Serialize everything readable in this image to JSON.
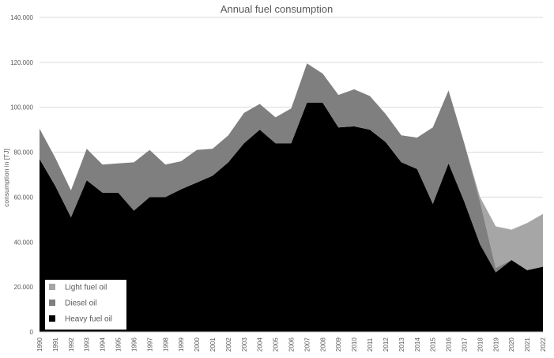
{
  "chart_data": {
    "type": "area",
    "stacked": true,
    "title": "Annual fuel consumption",
    "xlabel": "",
    "ylabel": "consumption in [TJ]",
    "ylim": [
      0,
      140000
    ],
    "yticks": [
      0,
      20000,
      40000,
      60000,
      80000,
      100000,
      120000,
      140000
    ],
    "ytick_labels": [
      "0",
      "20.000",
      "40.000",
      "60.000",
      "80.000",
      "100.000",
      "120.000",
      "140.000"
    ],
    "grid": true,
    "legend_position": "bottom-left",
    "categories": [
      "1990",
      "1991",
      "1992",
      "1993",
      "1994",
      "1995",
      "1996",
      "1997",
      "1998",
      "1999",
      "2000",
      "2001",
      "2002",
      "2003",
      "2004",
      "2005",
      "2006",
      "2007",
      "2008",
      "2009",
      "2010",
      "2011",
      "2012",
      "2013",
      "2014",
      "2015",
      "2016",
      "2017",
      "2018",
      "2019",
      "2020",
      "2021",
      "2022"
    ],
    "series": [
      {
        "name": "Heavy fuel oil",
        "color": "#000000",
        "values": [
          77000,
          65000,
          51000,
          67500,
          62000,
          62000,
          54000,
          60000,
          60000,
          63500,
          66500,
          69500,
          75500,
          84000,
          90000,
          84000,
          84000,
          102000,
          102000,
          91000,
          91500,
          90000,
          84500,
          75500,
          72500,
          57000,
          75000,
          58000,
          39000,
          26500,
          32000,
          27500,
          29000
        ]
      },
      {
        "name": "Diesel oil",
        "color": "#7f7f7f",
        "values": [
          13500,
          12500,
          12000,
          14000,
          12500,
          13000,
          21500,
          21000,
          14500,
          12500,
          14500,
          12000,
          12000,
          13500,
          11500,
          11500,
          15500,
          17500,
          13000,
          14500,
          16500,
          15000,
          12500,
          12000,
          14000,
          34000,
          32500,
          26000,
          19000,
          2000,
          0,
          0,
          0
        ]
      },
      {
        "name": "Light fuel oil",
        "color": "#a6a6a6",
        "values": [
          0,
          0,
          0,
          0,
          0,
          0,
          0,
          0,
          0,
          0,
          0,
          0,
          0,
          0,
          0,
          0,
          0,
          0,
          0,
          0,
          0,
          0,
          0,
          0,
          0,
          0,
          0,
          0,
          2000,
          18500,
          13500,
          21000,
          23500
        ]
      }
    ],
    "legend_order": [
      "Light fuel oil",
      "Diesel oil",
      "Heavy fuel oil"
    ]
  }
}
